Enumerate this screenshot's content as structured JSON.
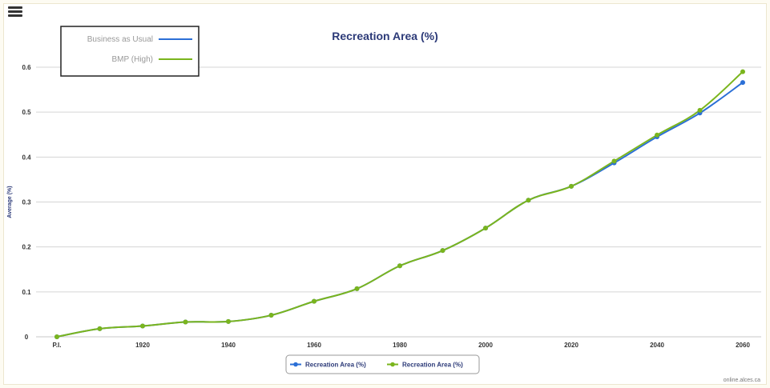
{
  "menu": {
    "icon": "hamburger-menu-icon"
  },
  "credit": "online.alces.ca",
  "colors": {
    "bau": "#2b6fd6",
    "bmp": "#7ab51d",
    "grid": "#d5d5d5",
    "title": "#2c3a78"
  },
  "chart_data": {
    "type": "line",
    "title": "Recreation Area (%)",
    "xlabel": "",
    "ylabel": "Average (%)",
    "x": [
      "P.I.",
      1910,
      1920,
      1930,
      1940,
      1950,
      1960,
      1970,
      1980,
      1990,
      2000,
      2010,
      2020,
      2030,
      2040,
      2050,
      2060
    ],
    "xticks": [
      "P.I.",
      "1920",
      "1940",
      "1960",
      "1980",
      "2000",
      "2020",
      "2040",
      "2060"
    ],
    "ylim": [
      0,
      0.6
    ],
    "yticks": [
      "0",
      "0.1",
      "0.2",
      "0.3",
      "0.4",
      "0.5",
      "0.6"
    ],
    "grid": true,
    "legend_box": {
      "position": "top-left",
      "entries": [
        "Business as Usual",
        "BMP (High)"
      ]
    },
    "bottom_legend": {
      "position": "bottom-center",
      "entries": [
        "Recreation Area (%)",
        "Recreation Area (%)"
      ]
    },
    "series": [
      {
        "name": "Business as Usual",
        "values": [
          0.0,
          0.018,
          0.024,
          0.033,
          0.034,
          0.048,
          0.079,
          0.107,
          0.158,
          0.192,
          0.242,
          0.304,
          0.335,
          0.387,
          0.445,
          0.498,
          0.566
        ]
      },
      {
        "name": "BMP (High)",
        "values": [
          0.0,
          0.018,
          0.024,
          0.033,
          0.034,
          0.048,
          0.079,
          0.107,
          0.158,
          0.192,
          0.242,
          0.304,
          0.335,
          0.391,
          0.449,
          0.504,
          0.59
        ]
      }
    ]
  }
}
